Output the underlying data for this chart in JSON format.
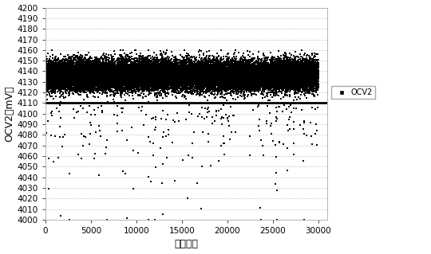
{
  "title": "",
  "xlabel": "电池序号",
  "ylabel": "OCV2（mV）",
  "xlim": [
    0,
    31000
  ],
  "ylim": [
    4000,
    4200
  ],
  "xticks": [
    0,
    5000,
    10000,
    15000,
    20000,
    25000,
    30000
  ],
  "yticks": [
    4000,
    4010,
    4020,
    4030,
    4040,
    4050,
    4060,
    4070,
    4080,
    4090,
    4100,
    4110,
    4120,
    4130,
    4140,
    4150,
    4160,
    4170,
    4180,
    4190,
    4200
  ],
  "threshold_line": 4110,
  "threshold_color": "#000000",
  "scatter_color": "#000000",
  "marker_size": 1.2,
  "legend_label": "OCV2",
  "legend_marker": "s",
  "legend_marker_size": 4,
  "n_points_main": 30000,
  "main_cluster_mean": 4136,
  "main_cluster_std": 7,
  "main_cluster_min": 4110,
  "main_cluster_max": 4160,
  "n_outliers": 250,
  "outlier_min": 4000,
  "outlier_max": 4109,
  "background_color": "#ffffff",
  "grid_color": "#b090b0",
  "grid_style": "dotted",
  "grid_linewidth": 0.5,
  "font_size_axis_label": 9,
  "font_size_tick": 7.5,
  "ylabel_rotation": 90,
  "spine_color": "#aaaaaa",
  "spine_linewidth": 0.6
}
